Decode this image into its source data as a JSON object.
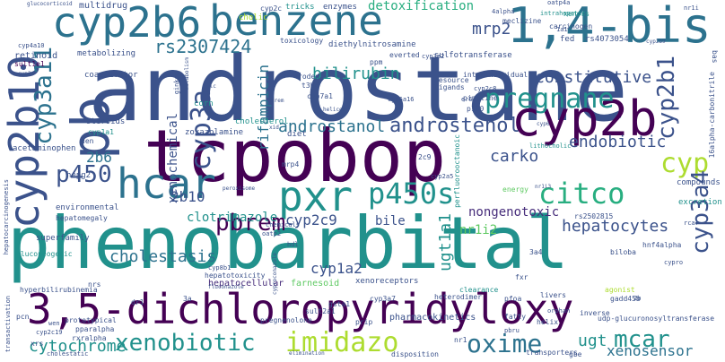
{
  "palette": {
    "dark_purple": "#440154",
    "indigo": "#472d7b",
    "slate_blue": "#3b528b",
    "steel_blue": "#2c728e",
    "teal": "#21918c",
    "sea_green": "#28ae80",
    "green": "#5ec962",
    "lime": "#addc30",
    "yellow": "#fde725",
    "background": "#ffffff"
  },
  "words": [
    {
      "text": "androstane",
      "color": "#3b528b"
    },
    {
      "text": "phenobarbital",
      "color": "#21918c"
    },
    {
      "text": "tcpobop",
      "color": "#440154"
    },
    {
      "text": "3,5-dichloropyridyloxy",
      "color": "#440154"
    },
    {
      "text": "cyp2b6",
      "color": "#2c728e"
    },
    {
      "text": "benzene",
      "color": "#2c728e"
    },
    {
      "text": "1,4-bis",
      "color": "#2c728e"
    },
    {
      "text": "cyp2b10",
      "color": "#3b528b"
    },
    {
      "text": "pb",
      "color": "#3b528b"
    },
    {
      "text": "hcar",
      "color": "#2c728e"
    },
    {
      "text": "pxr",
      "color": "#21918c"
    },
    {
      "text": "cyp2b",
      "color": "#440154"
    },
    {
      "text": "cyp3a11",
      "color": "#2c728e"
    },
    {
      "text": "cyp3a",
      "color": "#3b528b"
    },
    {
      "text": "pregnane",
      "color": "#21918c"
    },
    {
      "text": "cyp2b1",
      "color": "#3b528b"
    },
    {
      "text": "cyp",
      "color": "#addc30"
    },
    {
      "text": "p450s",
      "color": "#21918c"
    },
    {
      "text": "p450",
      "color": "#3b528b"
    },
    {
      "text": "pbrem",
      "color": "#440154"
    },
    {
      "text": "citco",
      "color": "#28ae80"
    },
    {
      "text": "xenobiotic",
      "color": "#21918c"
    },
    {
      "text": "imidazo",
      "color": "#addc30"
    },
    {
      "text": "oxime",
      "color": "#2c728e"
    },
    {
      "text": "mcar",
      "color": "#21918c"
    },
    {
      "text": "cyp3a4",
      "color": "#3b528b"
    },
    {
      "text": "cytochrome",
      "color": "#21918c"
    },
    {
      "text": "androstenol",
      "color": "#3b528b"
    },
    {
      "text": "androstanol",
      "color": "#2c728e"
    },
    {
      "text": "rs2307424",
      "color": "#2c728e"
    },
    {
      "text": "bilirubin",
      "color": "#21918c"
    },
    {
      "text": "mrp2",
      "color": "#3b528b"
    },
    {
      "text": "constitutive",
      "color": "#3b528b"
    },
    {
      "text": "detoxification",
      "color": "#28ae80"
    },
    {
      "text": "endobiotic",
      "color": "#3b528b"
    },
    {
      "text": "carko",
      "color": "#3b528b"
    },
    {
      "text": "cholestasis",
      "color": "#2c728e"
    },
    {
      "text": "hepatocytes",
      "color": "#3b528b"
    },
    {
      "text": "ugt1a1",
      "color": "#21918c"
    },
    {
      "text": "nr1i2",
      "color": "#5ec962"
    },
    {
      "text": "cyp2c9",
      "color": "#3b528b"
    },
    {
      "text": "cyp1a2",
      "color": "#3b528b"
    },
    {
      "text": "bile",
      "color": "#3b528b"
    },
    {
      "text": "nongenotoxic",
      "color": "#472d7b"
    },
    {
      "text": "clotrimazole",
      "color": "#21918c"
    },
    {
      "text": "rifampicin",
      "color": "#2c728e"
    },
    {
      "text": "xenochemical",
      "color": "#3b528b"
    },
    {
      "text": "2b10",
      "color": "#3b528b"
    },
    {
      "text": "2b6",
      "color": "#2c728e"
    },
    {
      "text": "xenosensor",
      "color": "#2c728e"
    },
    {
      "text": "ugt",
      "color": "#21918c"
    },
    {
      "text": "hepatocellular",
      "color": "#472d7b"
    },
    {
      "text": "farnesoid",
      "color": "#5ec962"
    },
    {
      "text": "multidrug",
      "color": "#3b528b"
    },
    {
      "text": "enzymes",
      "color": "#3b528b"
    },
    {
      "text": "tricks",
      "color": "#21918c"
    },
    {
      "text": "cholic",
      "color": "#addc30"
    },
    {
      "text": "cyp2c",
      "color": "#3b528b"
    },
    {
      "text": "xenors",
      "color": "#21918c"
    },
    {
      "text": "rs4073054",
      "color": "#3b528b"
    },
    {
      "text": "carcinogen",
      "color": "#3b528b"
    },
    {
      "text": "meclizine",
      "color": "#3b528b"
    },
    {
      "text": "intrahepatic",
      "color": "#21918c"
    },
    {
      "text": "fed",
      "color": "#3b528b"
    },
    {
      "text": "retinoid",
      "color": "#3b528b"
    },
    {
      "text": "metabolizing",
      "color": "#3b528b"
    },
    {
      "text": "sult1e1",
      "color": "#440154"
    },
    {
      "text": "coactivator",
      "color": "#3b528b"
    },
    {
      "text": "toxicology",
      "color": "#3b528b"
    },
    {
      "text": "diethylnitrosamine",
      "color": "#3b528b"
    },
    {
      "text": "sulfotransferase",
      "color": "#3b528b"
    },
    {
      "text": "everted",
      "color": "#3b528b"
    },
    {
      "text": "ppm",
      "color": "#3b528b"
    },
    {
      "text": "rodent",
      "color": "#3b528b"
    },
    {
      "text": "t3b4",
      "color": "#3b528b"
    },
    {
      "text": "cyp7a1",
      "color": "#3b528b"
    },
    {
      "text": "corn",
      "color": "#21918c"
    },
    {
      "text": "cholesterol",
      "color": "#21918c"
    },
    {
      "text": "resource",
      "color": "#3b528b"
    },
    {
      "text": "ligands",
      "color": "#3b528b"
    },
    {
      "text": "interindividual",
      "color": "#3b528b"
    },
    {
      "text": "pipeline",
      "color": "#3b528b"
    },
    {
      "text": "cyp2c8",
      "color": "#3b528b"
    },
    {
      "text": "cyp6a16",
      "color": "#3b528b"
    },
    {
      "text": "steroids",
      "color": "#3b528b"
    },
    {
      "text": "cyp1a1",
      "color": "#21918c"
    },
    {
      "text": "zoxazolamine",
      "color": "#3b528b"
    },
    {
      "text": "acetaminophen",
      "color": "#3b528b"
    },
    {
      "text": "den",
      "color": "#3b528b"
    },
    {
      "text": "hepg2",
      "color": "#3b528b"
    },
    {
      "text": "mrp4",
      "color": "#3b528b"
    },
    {
      "text": "diet",
      "color": "#3b528b"
    },
    {
      "text": "2c9",
      "color": "#3b528b"
    },
    {
      "text": "perfluorooctanoic",
      "color": "#21918c"
    },
    {
      "text": "p160",
      "color": "#3b528b"
    },
    {
      "text": "lithocholic",
      "color": "#21918c"
    },
    {
      "text": "16alpha-carbonitrile",
      "color": "#3b528b"
    },
    {
      "text": "bas",
      "color": "#3b528b"
    },
    {
      "text": "compounds",
      "color": "#3b528b"
    },
    {
      "text": "energy",
      "color": "#5ec962"
    },
    {
      "text": "excretion",
      "color": "#21918c"
    },
    {
      "text": "environmental",
      "color": "#3b528b"
    },
    {
      "text": "superfamily",
      "color": "#3b528b"
    },
    {
      "text": "gluconeogenic",
      "color": "#21918c"
    },
    {
      "text": "hepatomegaly",
      "color": "#3b528b"
    },
    {
      "text": "hepatotoxicity",
      "color": "#3b528b"
    },
    {
      "text": "xenoreceptors",
      "color": "#3b528b"
    },
    {
      "text": "rs2502815",
      "color": "#3b528b"
    },
    {
      "text": "biloba",
      "color": "#3b528b"
    },
    {
      "text": "hnf4alpha",
      "color": "#3b528b"
    },
    {
      "text": "heterodimer",
      "color": "#3b528b"
    },
    {
      "text": "clearance",
      "color": "#21918c"
    },
    {
      "text": "fxr",
      "color": "#3b528b"
    },
    {
      "text": "pfoa",
      "color": "#3b528b"
    },
    {
      "text": "gsta1",
      "color": "#3b528b"
    },
    {
      "text": "cyp3a7",
      "color": "#3b528b"
    },
    {
      "text": "agonist",
      "color": "#addc30"
    },
    {
      "text": "gadd45b",
      "color": "#3b528b"
    },
    {
      "text": "livers",
      "color": "#3b528b"
    },
    {
      "text": "sult2a1",
      "color": "#3b528b"
    },
    {
      "text": "pregnenolone",
      "color": "#3b528b"
    },
    {
      "text": "pharmacokinetics",
      "color": "#3b528b"
    },
    {
      "text": "fatty",
      "color": "#3b528b"
    },
    {
      "text": "helix",
      "color": "#3b528b"
    },
    {
      "text": "inverse",
      "color": "#3b528b"
    },
    {
      "text": "udp-glucuronosyltransferase",
      "color": "#3b528b"
    },
    {
      "text": "prototypical",
      "color": "#3b528b"
    },
    {
      "text": "pparalpha",
      "color": "#3b528b"
    },
    {
      "text": "rxralpha",
      "color": "#3b528b"
    },
    {
      "text": "hyperbilirubinemia",
      "color": "#3b528b"
    },
    {
      "text": "transactivation",
      "color": "#3b528b"
    },
    {
      "text": "cyp2c19",
      "color": "#3b528b"
    },
    {
      "text": "wen",
      "color": "#3b528b"
    },
    {
      "text": "xrs",
      "color": "#3b528b"
    },
    {
      "text": "cholestatic",
      "color": "#3b528b"
    },
    {
      "text": "disposition",
      "color": "#3b528b"
    },
    {
      "text": "nr1",
      "color": "#3b528b"
    },
    {
      "text": "transporters",
      "color": "#3b528b"
    },
    {
      "text": "gbe",
      "color": "#3b528b"
    },
    {
      "text": "prip",
      "color": "#3b528b"
    },
    {
      "text": "pbru",
      "color": "#3b528b"
    },
    {
      "text": "dr1",
      "color": "#3b528b"
    },
    {
      "text": "3a",
      "color": "#3b528b"
    },
    {
      "text": "pcn",
      "color": "#3b528b"
    },
    {
      "text": "nrs",
      "color": "#3b528b"
    },
    {
      "text": "2b",
      "color": "#3b528b"
    },
    {
      "text": "orphan",
      "color": "#3b528b"
    },
    {
      "text": "3a4",
      "color": "#3b528b"
    },
    {
      "text": "hepatocarcinogenesis",
      "color": "#3b528b"
    },
    {
      "text": "er6",
      "color": "#3b528b"
    },
    {
      "text": "cyp2a5",
      "color": "#3b528b"
    },
    {
      "text": "cyp3a2",
      "color": "#3b528b"
    },
    {
      "text": "oatp4a",
      "color": "#3b528b"
    },
    {
      "text": "4alpha",
      "color": "#3b528b"
    },
    {
      "text": "nr1i",
      "color": "#3b528b"
    },
    {
      "text": "1a1",
      "color": "#3b528b"
    },
    {
      "text": "cyp4a10",
      "color": "#3b528b"
    },
    {
      "text": "glucocorticoid",
      "color": "#3b528b"
    },
    {
      "text": "cyp2a",
      "color": "#3b528b"
    },
    {
      "text": "ginkgo",
      "color": "#3b528b"
    },
    {
      "text": "metabolism",
      "color": "#3b528b"
    },
    {
      "text": "xrem",
      "color": "#3b528b"
    },
    {
      "text": "cyproconazole",
      "color": "#3b528b"
    },
    {
      "text": "hdl",
      "color": "#3b528b"
    },
    {
      "text": "oatp2",
      "color": "#3b528b"
    },
    {
      "text": "chemicals",
      "color": "#3b528b"
    },
    {
      "text": "cypro",
      "color": "#3b528b"
    },
    {
      "text": "helices",
      "color": "#3b528b"
    },
    {
      "text": "xid",
      "color": "#3b528b"
    },
    {
      "text": "cyp8b1",
      "color": "#3b528b"
    },
    {
      "text": "fluconazole",
      "color": "#3b528b"
    },
    {
      "text": "cyp2b9",
      "color": "#3b528b"
    },
    {
      "text": "cyp6",
      "color": "#3b528b"
    },
    {
      "text": "elimination",
      "color": "#3b528b"
    },
    {
      "text": "peroxisome",
      "color": "#3b528b"
    },
    {
      "text": "nlc",
      "color": "#3b528b"
    },
    {
      "text": "rcar",
      "color": "#3b528b"
    },
    {
      "text": "nr1i3",
      "color": "#3b528b"
    }
  ]
}
